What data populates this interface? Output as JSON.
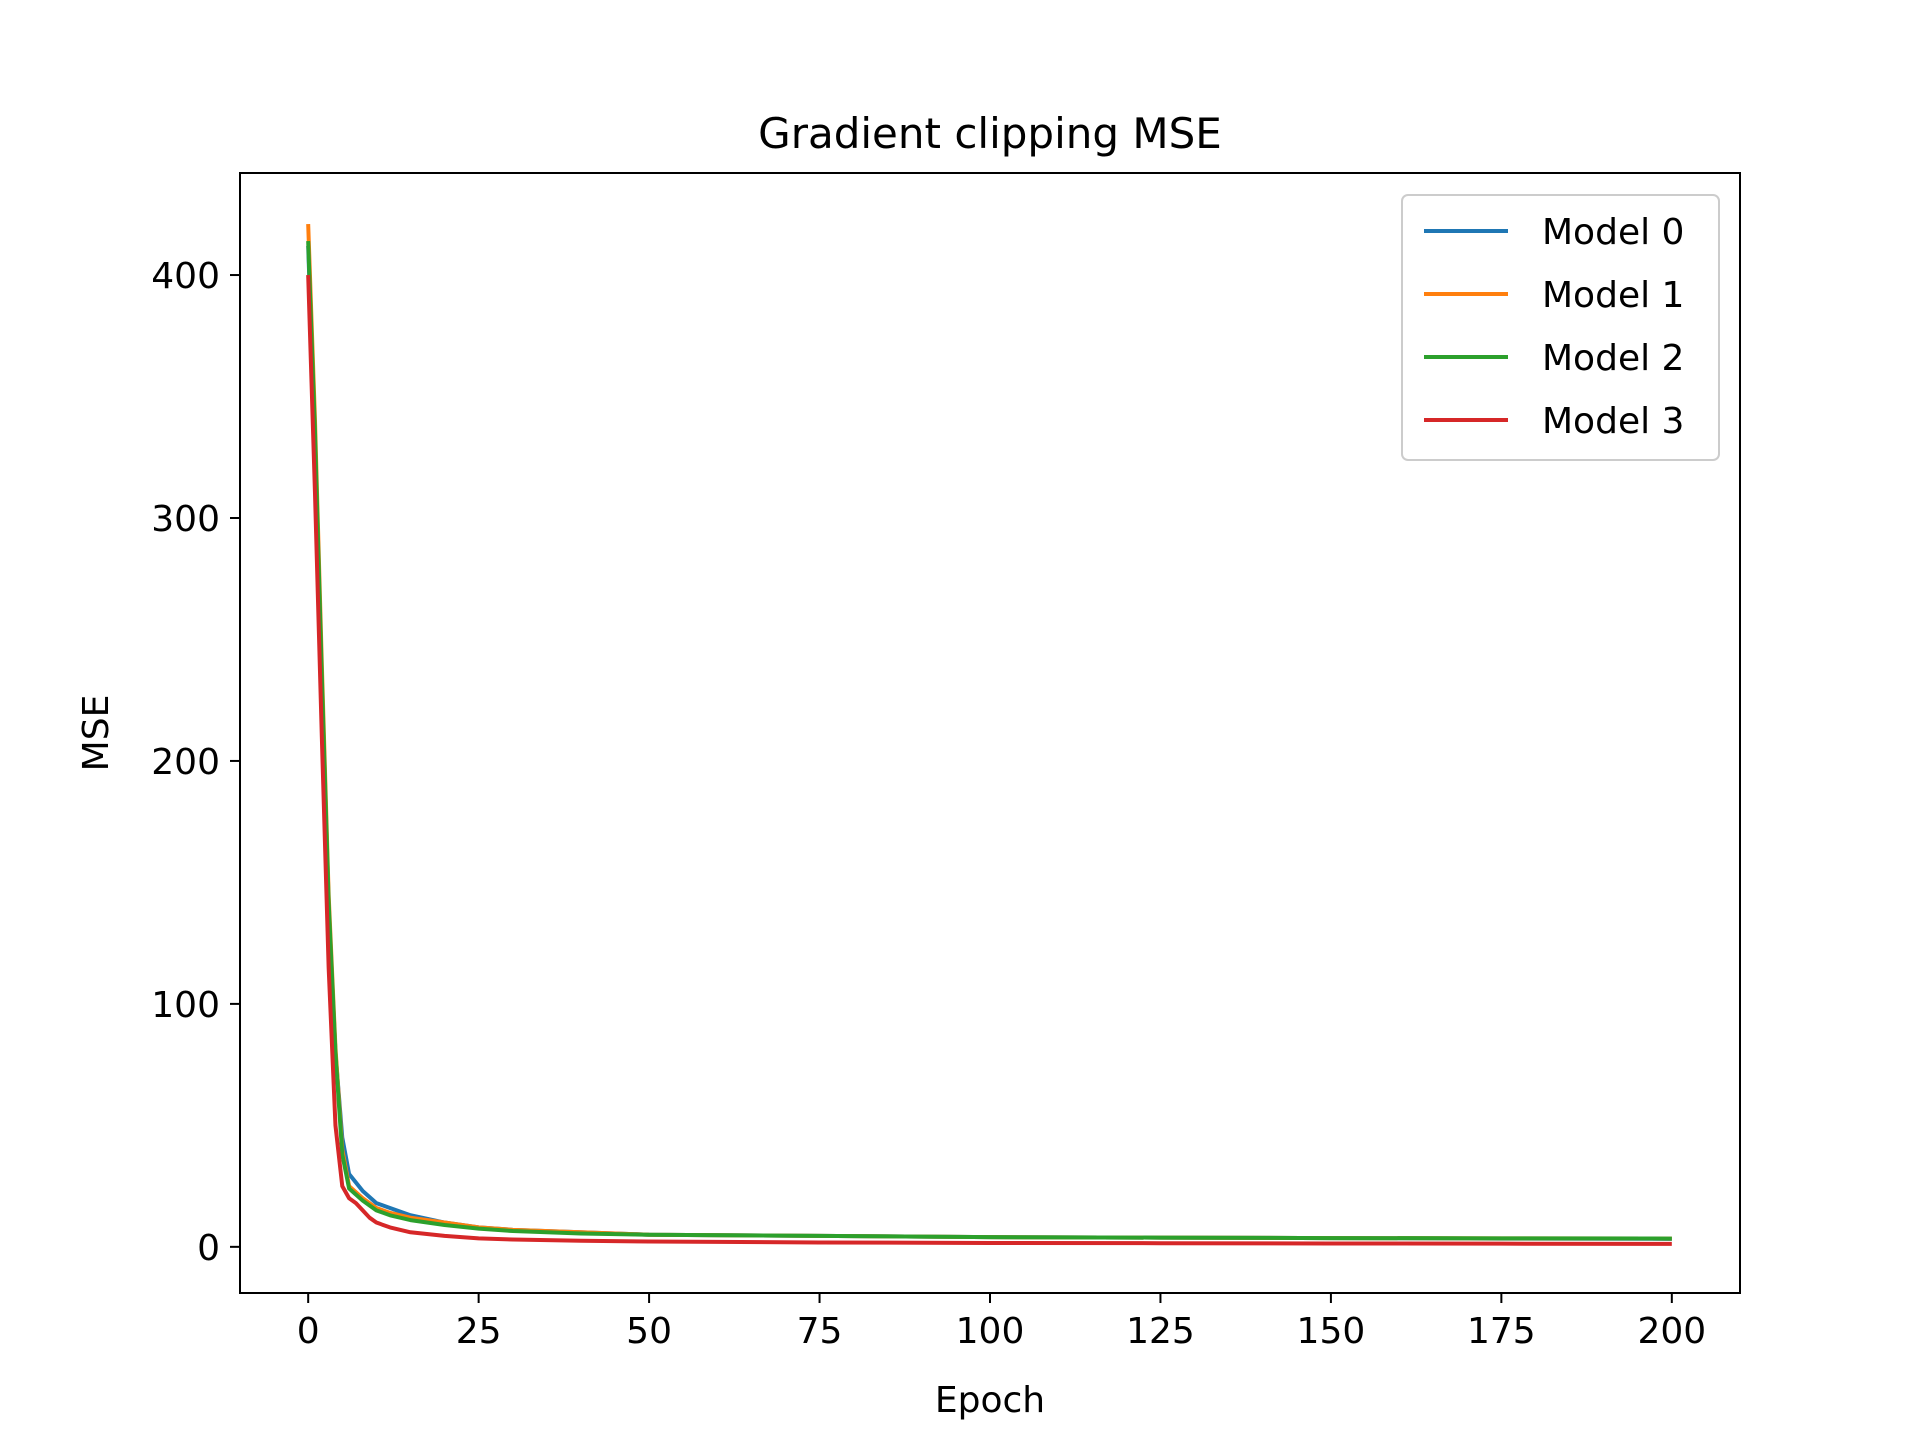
{
  "chart_data": {
    "type": "line",
    "title": "Gradient clipping MSE",
    "xlabel": "Epoch",
    "ylabel": "MSE",
    "xlim": [
      -10,
      210
    ],
    "ylim": [
      -19,
      442
    ],
    "xticks": [
      0,
      25,
      50,
      75,
      100,
      125,
      150,
      175,
      200
    ],
    "yticks": [
      0,
      100,
      200,
      300,
      400
    ],
    "grid": false,
    "legend_position": "top-right",
    "series": [
      {
        "name": "Model 0",
        "color": "#1f77b4",
        "x": [
          0,
          1,
          2,
          3,
          4,
          5,
          6,
          8,
          10,
          12,
          15,
          20,
          25,
          30,
          40,
          50,
          75,
          100,
          125,
          150,
          175,
          200
        ],
        "y": [
          412,
          330,
          230,
          140,
          80,
          45,
          30,
          23,
          18,
          16,
          13,
          10,
          8,
          7,
          6,
          5,
          4.5,
          4,
          3.8,
          3.6,
          3.4,
          3.3
        ]
      },
      {
        "name": "Model 1",
        "color": "#ff7f0e",
        "x": [
          0,
          1,
          2,
          3,
          4,
          5,
          6,
          8,
          10,
          12,
          15,
          20,
          25,
          30,
          40,
          50,
          75,
          100,
          125,
          150,
          175,
          200
        ],
        "y": [
          421,
          340,
          240,
          145,
          82,
          40,
          25,
          20,
          16,
          14,
          12,
          10,
          8,
          7,
          6,
          5,
          4.5,
          4,
          3.8,
          3.6,
          3.5,
          3.4
        ]
      },
      {
        "name": "Model 2",
        "color": "#2ca02c",
        "x": [
          0,
          1,
          2,
          3,
          4,
          5,
          6,
          8,
          10,
          12,
          15,
          20,
          25,
          30,
          40,
          50,
          75,
          100,
          125,
          150,
          175,
          200
        ],
        "y": [
          414,
          335,
          235,
          142,
          80,
          38,
          24,
          19,
          15,
          13,
          11,
          9,
          7.5,
          6.5,
          5.5,
          5,
          4.5,
          4,
          3.8,
          3.6,
          3.5,
          3.4
        ]
      },
      {
        "name": "Model 3",
        "color": "#d62728",
        "x": [
          0,
          1,
          2,
          3,
          4,
          5,
          6,
          7,
          8,
          9,
          10,
          12,
          15,
          20,
          25,
          30,
          40,
          50,
          75,
          100,
          125,
          150,
          175,
          200
        ],
        "y": [
          400,
          310,
          210,
          115,
          50,
          25,
          20,
          18,
          15,
          12,
          10,
          8,
          6,
          4.5,
          3.5,
          3,
          2.5,
          2.2,
          1.8,
          1.6,
          1.5,
          1.4,
          1.3,
          1.2
        ]
      }
    ]
  }
}
